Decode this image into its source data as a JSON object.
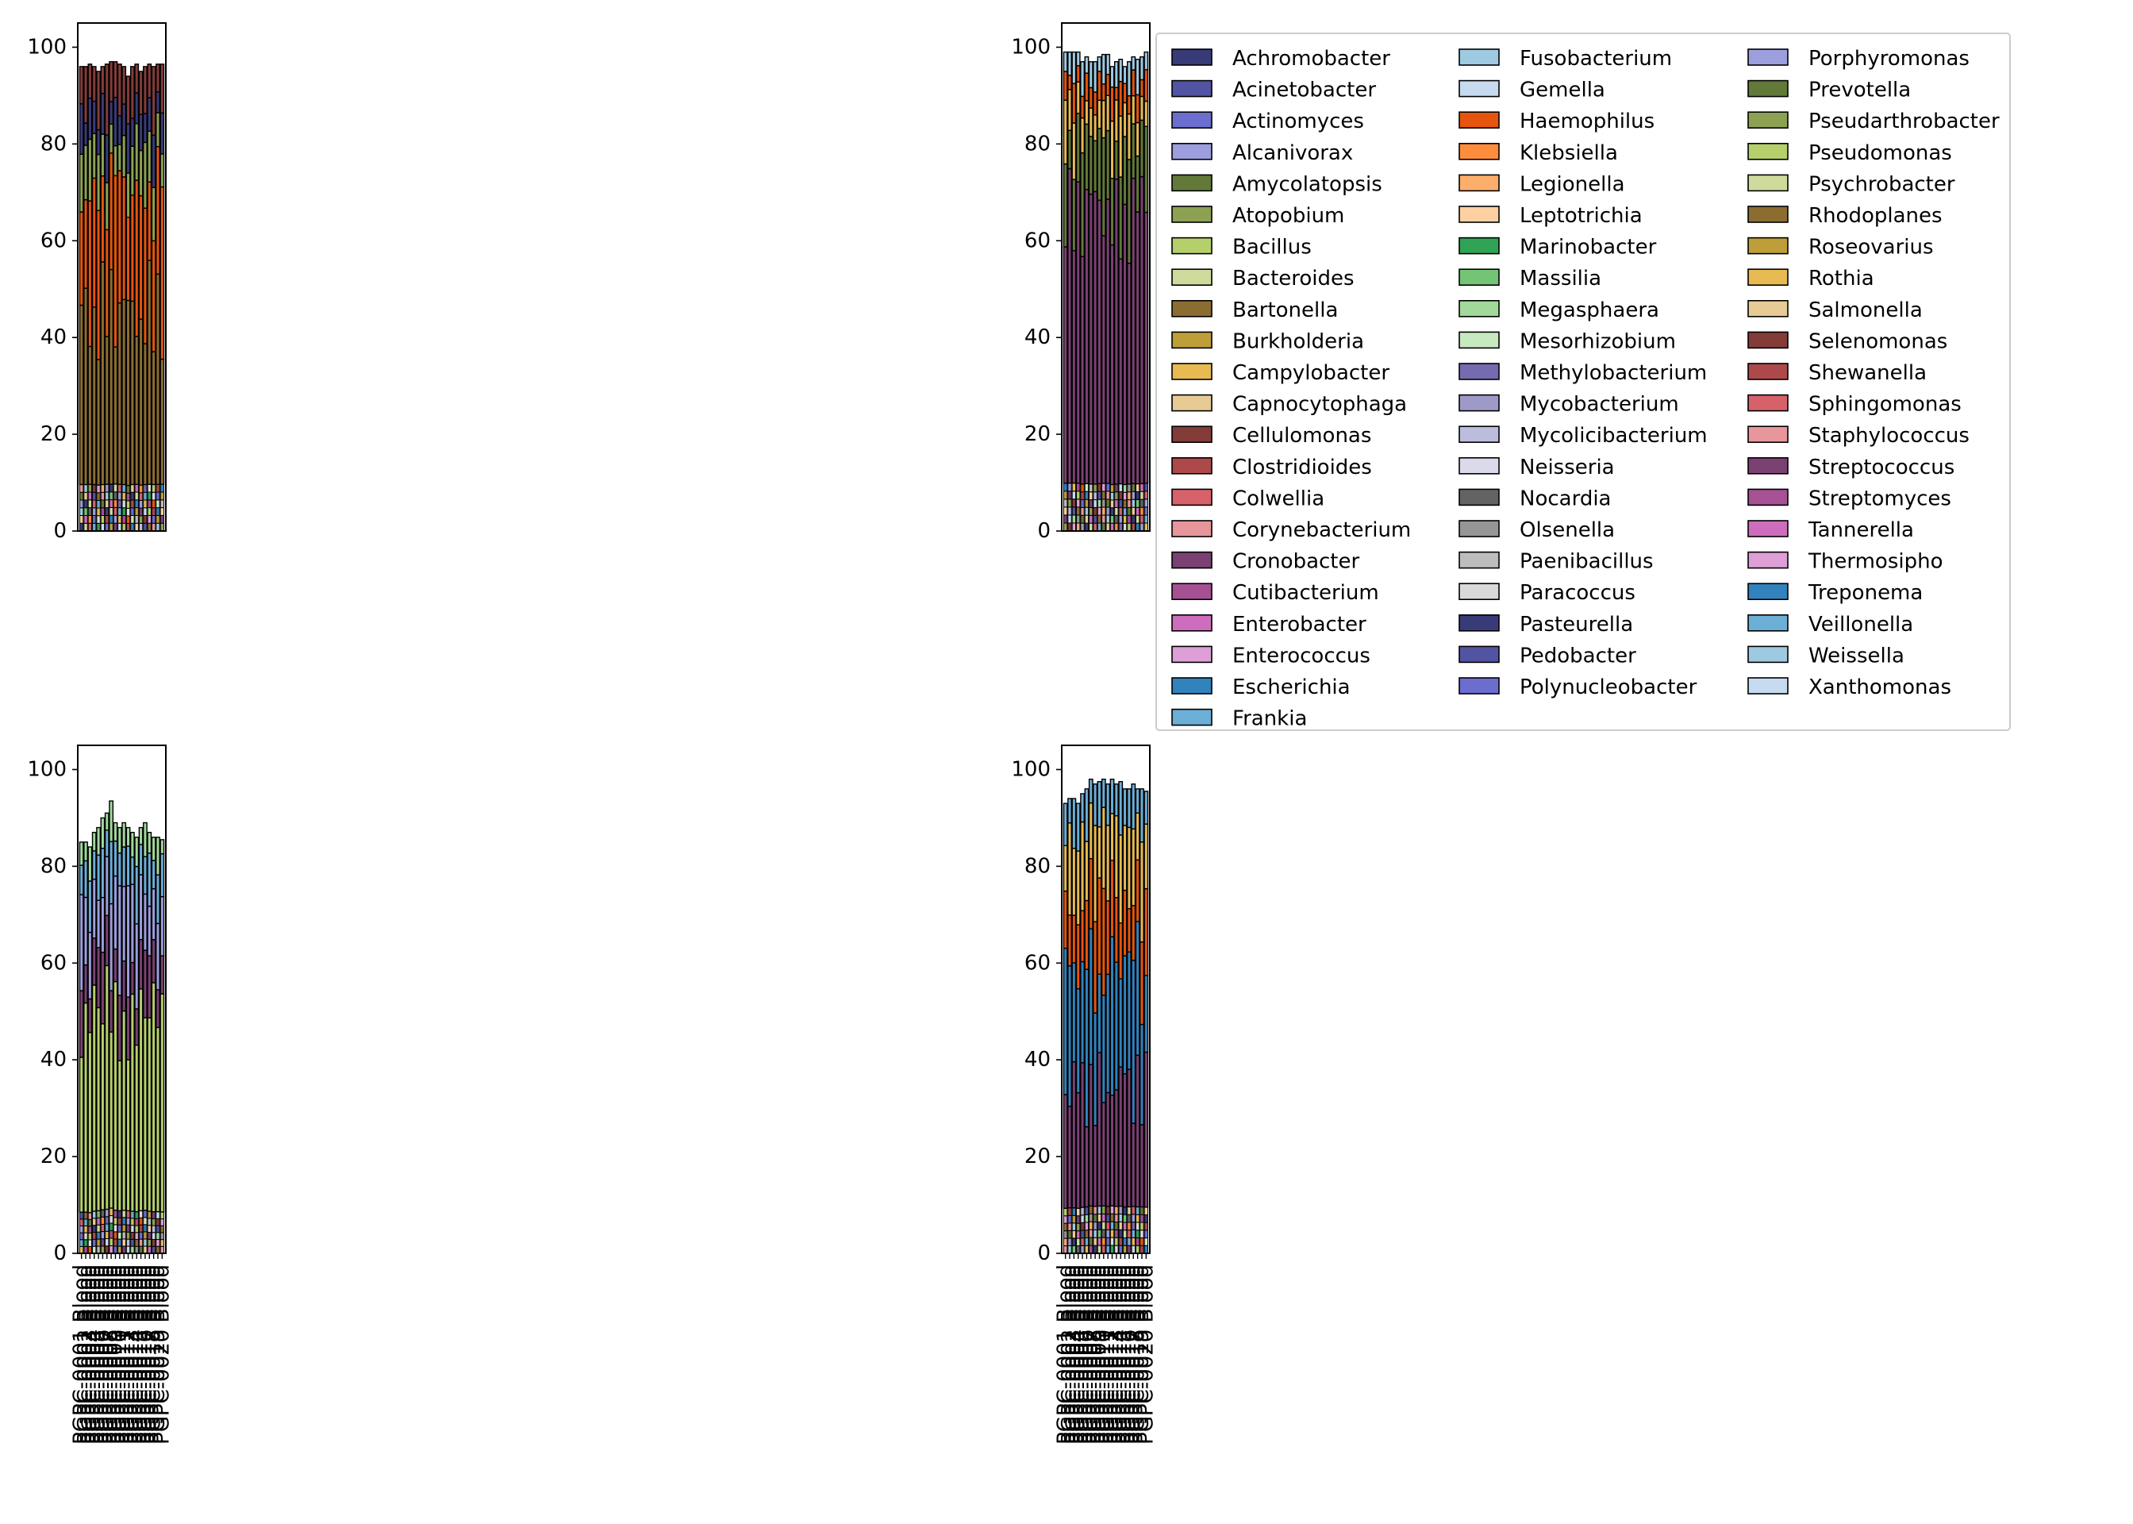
{
  "figure": {
    "axis_ticks": [
      "0",
      "20",
      "40",
      "60",
      "80",
      "100"
    ],
    "legend_entries": [
      {
        "label": "Achromobacter",
        "color": "#393b79"
      },
      {
        "label": "Acinetobacter",
        "color": "#5254a3"
      },
      {
        "label": "Actinomyces",
        "color": "#6b6ecf"
      },
      {
        "label": "Alcanivorax",
        "color": "#9c9ede"
      },
      {
        "label": "Amycolatopsis",
        "color": "#637939"
      },
      {
        "label": "Atopobium",
        "color": "#8ca252"
      },
      {
        "label": "Bacillus",
        "color": "#b5cf6b"
      },
      {
        "label": "Bacteroides",
        "color": "#cedb9c"
      },
      {
        "label": "Bartonella",
        "color": "#8c6d31"
      },
      {
        "label": "Burkholderia",
        "color": "#bd9e39"
      },
      {
        "label": "Campylobacter",
        "color": "#e7ba52"
      },
      {
        "label": "Capnocytophaga",
        "color": "#e7cb94"
      },
      {
        "label": "Cellulomonas",
        "color": "#843c39"
      },
      {
        "label": "Clostridioides",
        "color": "#ad494a"
      },
      {
        "label": "Colwellia",
        "color": "#d6616b"
      },
      {
        "label": "Corynebacterium",
        "color": "#e7969c"
      },
      {
        "label": "Cronobacter",
        "color": "#7b4173"
      },
      {
        "label": "Cutibacterium",
        "color": "#a55194"
      },
      {
        "label": "Enterobacter",
        "color": "#ce6dbd"
      },
      {
        "label": "Enterococcus",
        "color": "#de9ed6"
      },
      {
        "label": "Escherichia",
        "color": "#3182bd"
      },
      {
        "label": "Frankia",
        "color": "#6baed6"
      },
      {
        "label": "Fusobacterium",
        "color": "#9ecae1"
      },
      {
        "label": "Gemella",
        "color": "#c6dbef"
      },
      {
        "label": "Haemophilus",
        "color": "#e6550d"
      },
      {
        "label": "Klebsiella",
        "color": "#fd8d3c"
      },
      {
        "label": "Legionella",
        "color": "#fdae6b"
      },
      {
        "label": "Leptotrichia",
        "color": "#fdd0a2"
      },
      {
        "label": "Marinobacter",
        "color": "#31a354"
      },
      {
        "label": "Massilia",
        "color": "#74c476"
      },
      {
        "label": "Megasphaera",
        "color": "#a1d99b"
      },
      {
        "label": "Mesorhizobium",
        "color": "#c7e9c0"
      },
      {
        "label": "Methylobacterium",
        "color": "#756bb1"
      },
      {
        "label": "Mycobacterium",
        "color": "#9e9ac8"
      },
      {
        "label": "Mycolicibacterium",
        "color": "#bcbddc"
      },
      {
        "label": "Neisseria",
        "color": "#dadaeb"
      },
      {
        "label": "Nocardia",
        "color": "#636363"
      },
      {
        "label": "Olsenella",
        "color": "#969696"
      },
      {
        "label": "Paenibacillus",
        "color": "#bdbdbd"
      },
      {
        "label": "Paracoccus",
        "color": "#d9d9d9"
      },
      {
        "label": "Pasteurella",
        "color": "#393b79"
      },
      {
        "label": "Pedobacter",
        "color": "#5254a3"
      },
      {
        "label": "Polynucleobacter",
        "color": "#6b6ecf"
      },
      {
        "label": "Porphyromonas",
        "color": "#9c9ede"
      },
      {
        "label": "Prevotella",
        "color": "#637939"
      },
      {
        "label": "Pseudarthrobacter",
        "color": "#8ca252"
      },
      {
        "label": "Pseudomonas",
        "color": "#b5cf6b"
      },
      {
        "label": "Psychrobacter",
        "color": "#cedb9c"
      },
      {
        "label": "Rhodoplanes",
        "color": "#8c6d31"
      },
      {
        "label": "Roseovarius",
        "color": "#bd9e39"
      },
      {
        "label": "Rothia",
        "color": "#e7ba52"
      },
      {
        "label": "Salmonella",
        "color": "#e7cb94"
      },
      {
        "label": "Selenomonas",
        "color": "#843c39"
      },
      {
        "label": "Shewanella",
        "color": "#ad494a"
      },
      {
        "label": "Sphingomonas",
        "color": "#d6616b"
      },
      {
        "label": "Staphylococcus",
        "color": "#e7969c"
      },
      {
        "label": "Streptococcus",
        "color": "#7b4173"
      },
      {
        "label": "Streptomyces",
        "color": "#a55194"
      },
      {
        "label": "Tannerella",
        "color": "#ce6dbd"
      },
      {
        "label": "Thermosipho",
        "color": "#de9ed6"
      },
      {
        "label": "Treponema",
        "color": "#3182bd"
      },
      {
        "label": "Veillonella",
        "color": "#6baed6"
      },
      {
        "label": "Weissella",
        "color": "#9ecae1"
      },
      {
        "label": "Xanthomonas",
        "color": "#c6dbef"
      }
    ]
  },
  "chart_data": [
    {
      "type": "bar",
      "stacked": true,
      "position": "top-left",
      "ylim": [
        0,
        105
      ],
      "yticks": [
        0,
        20,
        40,
        60,
        80,
        100
      ],
      "n_bars": 20,
      "categories": [
        "",
        "",
        "",
        "",
        "",
        "",
        "",
        "",
        "",
        "",
        "",
        "",
        "",
        "",
        "",
        "",
        "",
        "",
        "",
        ""
      ],
      "totals": [
        96,
        96,
        96.5,
        96,
        95,
        96,
        96.5,
        97,
        97,
        96.5,
        96,
        94,
        96,
        96.5,
        95,
        96,
        96.5,
        96,
        96.5,
        96.5
      ],
      "dominant": [
        {
          "name": "Bartonella",
          "approx_share": 40
        },
        {
          "name": "Haemophilus",
          "approx_share": 28
        },
        {
          "name": "Atopobium",
          "approx_share": 10
        },
        {
          "name": "Achromobacter",
          "approx_share": 8
        },
        {
          "name": "Cellulomonas",
          "approx_share": 10
        }
      ]
    },
    {
      "type": "bar",
      "stacked": true,
      "position": "top-right",
      "ylim": [
        0,
        105
      ],
      "yticks": [
        0,
        20,
        40,
        60,
        80,
        100
      ],
      "n_bars": 20,
      "categories": [
        "",
        "",
        "",
        "",
        "",
        "",
        "",
        "",
        "",
        "",
        "",
        "",
        "",
        "",
        "",
        "",
        "",
        "",
        "",
        ""
      ],
      "totals": [
        99,
        99,
        99,
        99,
        97,
        98,
        97,
        97,
        98,
        98.5,
        98.5,
        96,
        97,
        97.5,
        96,
        97,
        98,
        97.5,
        98,
        99
      ],
      "dominant": [
        {
          "name": "Cronobacter",
          "approx_share": 60
        },
        {
          "name": "Amycolatopsis",
          "approx_share": 15
        },
        {
          "name": "Campylobacter",
          "approx_share": 8
        },
        {
          "name": "Haemophilus",
          "approx_share": 5
        },
        {
          "name": "Fusobacterium",
          "approx_share": 5
        }
      ]
    },
    {
      "type": "bar",
      "stacked": true,
      "position": "bottom-left",
      "ylim": [
        0,
        105
      ],
      "yticks": [
        0,
        20,
        40,
        60,
        80,
        100
      ],
      "n_bars": 20,
      "categories": [
        "PGPC-0001 Blood",
        "PGPC-0002 Blood",
        "PGPC-0003 Blood",
        "PGPC-0004 Blood",
        "PGPC-0005 Blood",
        "PGPC-0006 Blood",
        "PGPC-0007 Blood",
        "PGPC-0008 Blood",
        "PGPC-0009 Blood",
        "PGPC-0010 Blood",
        "PGPC-0011 Blood",
        "PGPC-0012 Blood",
        "PGPC-0013 Blood",
        "PGPC-0014 Blood",
        "PGPC-0015 Blood",
        "PGPC-0016 Blood",
        "PGPC-0017 Blood",
        "PGPC-0018 Blood",
        "PGPC-0019 Blood",
        "PGPC-0020 Blood"
      ],
      "totals": [
        85,
        85,
        84,
        87,
        88,
        90,
        91,
        93.5,
        89,
        88,
        89,
        88,
        87,
        86,
        88,
        89,
        87,
        86,
        86,
        85.5
      ],
      "dominant": [
        {
          "name": "Bacillus",
          "approx_share": 40
        },
        {
          "name": "Cronobacter",
          "approx_share": 10
        },
        {
          "name": "Alcanivorax",
          "approx_share": 15
        },
        {
          "name": "Frankia",
          "approx_share": 8
        },
        {
          "name": "Megasphaera",
          "approx_share": 5
        }
      ]
    },
    {
      "type": "bar",
      "stacked": true,
      "position": "bottom-right",
      "ylim": [
        0,
        105
      ],
      "yticks": [
        0,
        20,
        40,
        60,
        80,
        100
      ],
      "n_bars": 20,
      "categories": [
        "PGPC-0001 Blood",
        "PGPC-0002 Blood",
        "PGPC-0003 Blood",
        "PGPC-0004 Blood",
        "PGPC-0005 Blood",
        "PGPC-0006 Blood",
        "PGPC-0007 Blood",
        "PGPC-0008 Blood",
        "PGPC-0009 Blood",
        "PGPC-0010 Blood",
        "PGPC-0011 Blood",
        "PGPC-0012 Blood",
        "PGPC-0013 Blood",
        "PGPC-0014 Blood",
        "PGPC-0015 Blood",
        "PGPC-0016 Blood",
        "PGPC-0017 Blood",
        "PGPC-0018 Blood",
        "PGPC-0019 Blood",
        "PGPC-0020 Blood"
      ],
      "totals": [
        93,
        94,
        94,
        93,
        95,
        96,
        98,
        97,
        97.5,
        98,
        97,
        98,
        97,
        97.5,
        96,
        96,
        97,
        96,
        96,
        95.5
      ],
      "dominant": [
        {
          "name": "Cronobacter",
          "approx_share": 25
        },
        {
          "name": "Escherichia",
          "approx_share": 25
        },
        {
          "name": "Haemophilus",
          "approx_share": 15
        },
        {
          "name": "Campylobacter",
          "approx_share": 15
        },
        {
          "name": "Frankia",
          "approx_share": 8
        }
      ]
    }
  ]
}
